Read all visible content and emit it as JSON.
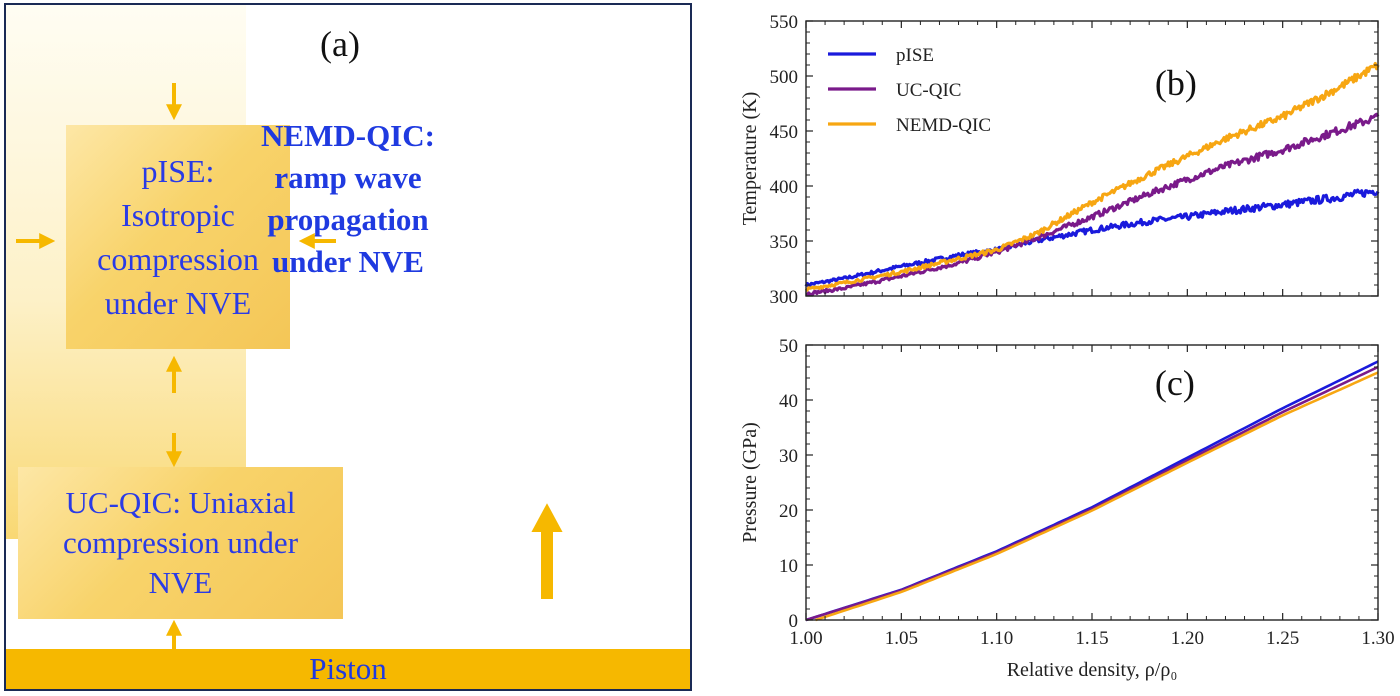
{
  "panel_a": {
    "label": "(a)",
    "pise_box": {
      "lines": [
        "pISE:",
        "Isotropic",
        "compression",
        "under NVE"
      ]
    },
    "ucqic_box": {
      "lines": [
        "UC-QIC: Uniaxial",
        "compression under",
        "NVE"
      ]
    },
    "nemd_box": {
      "lines": [
        "NEMD-QIC:",
        "ramp wave",
        "propagation",
        "under NVE"
      ],
      "piston_label": "Piston"
    },
    "colors": {
      "text": "#2a3be6",
      "arrow": "#f6b800",
      "border": "#1a2a55"
    }
  },
  "chart_data": [
    {
      "panel_label": "(b)",
      "type": "line",
      "ylabel": "Temperature (K)",
      "xlabel": "",
      "xlim": [
        1.0,
        1.3
      ],
      "ylim": [
        300,
        550
      ],
      "yticks": [
        300,
        350,
        400,
        450,
        500,
        550
      ],
      "xticks": [
        1.0,
        1.05,
        1.1,
        1.15,
        1.2,
        1.25,
        1.3
      ],
      "show_x_tick_labels": false,
      "legend_position": "top-left",
      "series": [
        {
          "name": "pISE",
          "color": "#1a1adc",
          "x": [
            1.0,
            1.02,
            1.05,
            1.08,
            1.1,
            1.12,
            1.15,
            1.18,
            1.2,
            1.22,
            1.25,
            1.28,
            1.3
          ],
          "y": [
            310,
            316,
            327,
            337,
            342,
            350,
            360,
            368,
            372,
            377,
            383,
            390,
            396
          ]
        },
        {
          "name": "UC-QIC",
          "color": "#7a1a8a",
          "x": [
            1.0,
            1.02,
            1.05,
            1.08,
            1.1,
            1.12,
            1.15,
            1.18,
            1.2,
            1.22,
            1.25,
            1.28,
            1.3
          ],
          "y": [
            302,
            307,
            318,
            330,
            340,
            352,
            372,
            393,
            406,
            418,
            433,
            451,
            463
          ]
        },
        {
          "name": "NEMD-QIC",
          "color": "#f7a612",
          "x": [
            1.0,
            1.02,
            1.05,
            1.08,
            1.1,
            1.12,
            1.15,
            1.18,
            1.2,
            1.22,
            1.25,
            1.28,
            1.3
          ],
          "y": [
            306,
            312,
            322,
            334,
            342,
            356,
            385,
            411,
            427,
            443,
            463,
            490,
            510
          ]
        }
      ]
    },
    {
      "panel_label": "(c)",
      "type": "line",
      "ylabel": "Pressure (GPa)",
      "xlabel": "Relative density, ρ/ρ₀",
      "xlim": [
        1.0,
        1.3
      ],
      "ylim": [
        0,
        50
      ],
      "yticks": [
        0,
        10,
        20,
        30,
        40,
        50
      ],
      "xticks": [
        1.0,
        1.05,
        1.1,
        1.15,
        1.2,
        1.25,
        1.3
      ],
      "xtick_labels": [
        "1.00",
        "1.05",
        "1.10",
        "1.15",
        "1.20",
        "1.25",
        "1.30"
      ],
      "show_x_tick_labels": true,
      "series": [
        {
          "name": "pISE",
          "color": "#1a1adc",
          "x": [
            1.0,
            1.05,
            1.1,
            1.15,
            1.2,
            1.25,
            1.3
          ],
          "y": [
            0,
            5.5,
            12.5,
            20.5,
            29.5,
            38.5,
            47
          ]
        },
        {
          "name": "UC-QIC",
          "color": "#7a1a8a",
          "x": [
            1.0,
            1.05,
            1.1,
            1.15,
            1.2,
            1.25,
            1.3
          ],
          "y": [
            0,
            5.4,
            12.3,
            20.2,
            29.0,
            37.8,
            46
          ]
        },
        {
          "name": "NEMD-QIC",
          "color": "#f7a612",
          "x": [
            1.005,
            1.05,
            1.1,
            1.15,
            1.2,
            1.25,
            1.3
          ],
          "y": [
            0,
            5.1,
            12.0,
            19.9,
            28.6,
            37.2,
            45
          ]
        }
      ]
    }
  ]
}
